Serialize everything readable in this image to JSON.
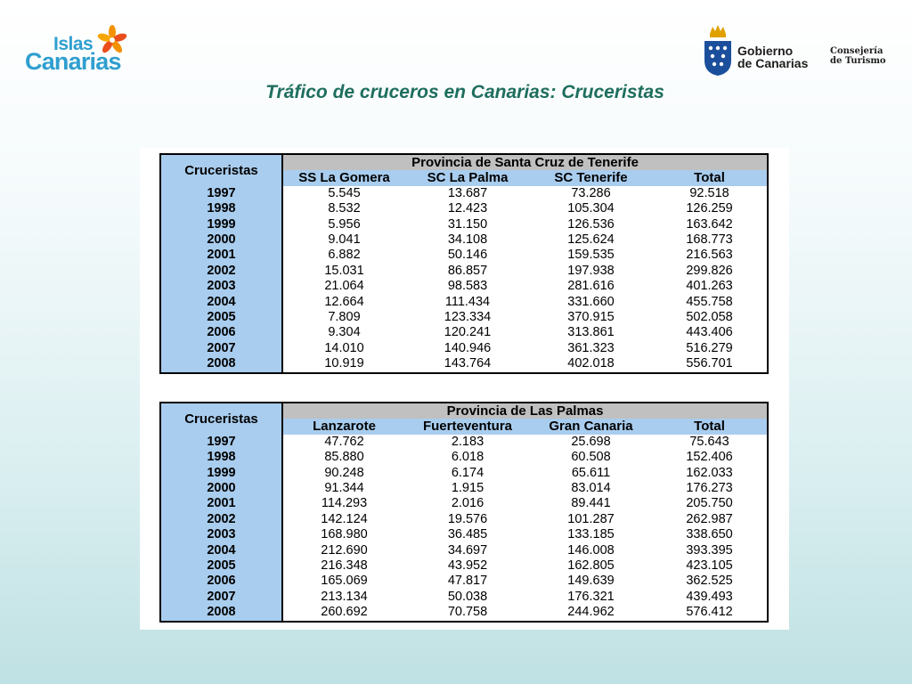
{
  "logo_left": {
    "line1": "Islas",
    "line2": "Canarias"
  },
  "logo_right": {
    "gobierno_line1": "Gobierno",
    "gobierno_line2": "de Canarias",
    "consejeria_line1": "Consejería",
    "consejeria_line2": "de Turismo"
  },
  "title": "Tráfico de cruceros en Canarias: Cruceristas",
  "tables": [
    {
      "row_header": "Cruceristas",
      "province": "Provincia de Santa Cruz de Tenerife",
      "columns": [
        "SS La Gomera",
        "SC La Palma",
        "SC Tenerife",
        "Total"
      ],
      "rows": [
        [
          "1997",
          "5.545",
          "13.687",
          "73.286",
          "92.518"
        ],
        [
          "1998",
          "8.532",
          "12.423",
          "105.304",
          "126.259"
        ],
        [
          "1999",
          "5.956",
          "31.150",
          "126.536",
          "163.642"
        ],
        [
          "2000",
          "9.041",
          "34.108",
          "125.624",
          "168.773"
        ],
        [
          "2001",
          "6.882",
          "50.146",
          "159.535",
          "216.563"
        ],
        [
          "2002",
          "15.031",
          "86.857",
          "197.938",
          "299.826"
        ],
        [
          "2003",
          "21.064",
          "98.583",
          "281.616",
          "401.263"
        ],
        [
          "2004",
          "12.664",
          "111.434",
          "331.660",
          "455.758"
        ],
        [
          "2005",
          "7.809",
          "123.334",
          "370.915",
          "502.058"
        ],
        [
          "2006",
          "9.304",
          "120.241",
          "313.861",
          "443.406"
        ],
        [
          "2007",
          "14.010",
          "140.946",
          "361.323",
          "516.279"
        ],
        [
          "2008",
          "10.919",
          "143.764",
          "402.018",
          "556.701"
        ]
      ]
    },
    {
      "row_header": "Cruceristas",
      "province": "Provincia de Las Palmas",
      "columns": [
        "Lanzarote",
        "Fuerteventura",
        "Gran Canaria",
        "Total"
      ],
      "rows": [
        [
          "1997",
          "47.762",
          "2.183",
          "25.698",
          "75.643"
        ],
        [
          "1998",
          "85.880",
          "6.018",
          "60.508",
          "152.406"
        ],
        [
          "1999",
          "90.248",
          "6.174",
          "65.611",
          "162.033"
        ],
        [
          "2000",
          "91.344",
          "1.915",
          "83.014",
          "176.273"
        ],
        [
          "2001",
          "114.293",
          "2.016",
          "89.441",
          "205.750"
        ],
        [
          "2002",
          "142.124",
          "19.576",
          "101.287",
          "262.987"
        ],
        [
          "2003",
          "168.980",
          "36.485",
          "133.185",
          "338.650"
        ],
        [
          "2004",
          "212.690",
          "34.697",
          "146.008",
          "393.395"
        ],
        [
          "2005",
          "216.348",
          "43.952",
          "162.805",
          "423.105"
        ],
        [
          "2006",
          "165.069",
          "47.817",
          "149.639",
          "362.525"
        ],
        [
          "2007",
          "213.134",
          "50.038",
          "176.321",
          "439.493"
        ],
        [
          "2008",
          "260.692",
          "70.758",
          "244.962",
          "576.412"
        ]
      ]
    }
  ],
  "colors": {
    "header_blue": "#a9cdee",
    "header_grey": "#c0c0c0",
    "title_green": "#1e6e5e",
    "logo_blue": "#2f9fcf",
    "logo_orange": "#f39200"
  }
}
